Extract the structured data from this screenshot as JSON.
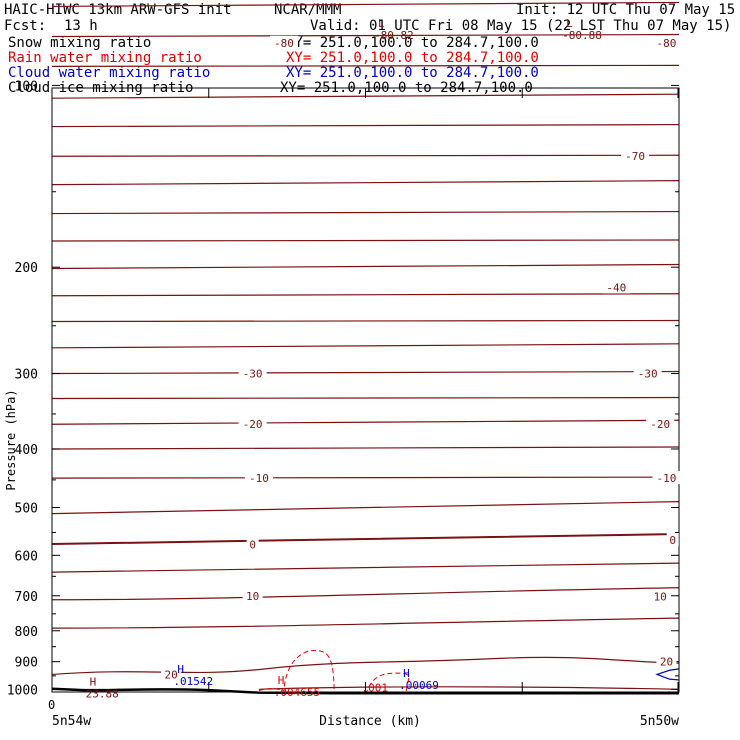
{
  "header": {
    "title_left": "HAIC-HIWC 13km ARW-GFS init",
    "org": "NCAR/MMM",
    "init": "Init: 12 UTC Thu 07 May 15",
    "fcst_label": "Fcst:",
    "fcst_value": "13 h",
    "valid": "Valid: 01 UTC Fri 08 May 15 (22 LST Thu 07 May 15)"
  },
  "fields": [
    {
      "name": "Snow mixing ratio",
      "xy": "XY= 251.0,100.0 to 284.7,100.0",
      "color": "#000000"
    },
    {
      "name": "Rain water mixing ratio",
      "xy": "XY= 251.0,100.0 to 284.7,100.0",
      "color": "#e00000"
    },
    {
      "name": "Cloud water mixing ratio",
      "xy": "XY= 251.0,100.0 to 284.7,100.0",
      "color": "#0000c8"
    },
    {
      "name": "Cloud ice mixing ratio",
      "xy": "XY= 251.0,100.0 to 284.7,100.0",
      "color": "#000000"
    }
  ],
  "colors": {
    "temperature": "#7a1212",
    "rain": "#e00000",
    "cloud_water": "#0000c8",
    "terrain": "#000000"
  },
  "chart_data": {
    "type": "line",
    "ylabel": "Pressure (hPa)",
    "xlabel": "Distance (km)",
    "x_start_label": "5n54w",
    "x_end_label": "5n50w",
    "x_zero_label": "0",
    "ylim": [
      1050,
      50
    ],
    "yticks": [
      100,
      200,
      300,
      400,
      500,
      600,
      700,
      800,
      900,
      1000
    ],
    "y_log": true,
    "temperature_contour_labels": [
      {
        "text": "-80",
        "x": 0.37,
        "p": 85
      },
      {
        "text": "-80",
        "x": 0.98,
        "p": 85
      },
      {
        "text": "-70",
        "x": 0.93,
        "p": 131
      },
      {
        "text": "-40",
        "x": 0.9,
        "p": 216
      },
      {
        "text": "-30",
        "x": 0.32,
        "p": 300
      },
      {
        "text": "-30",
        "x": 0.95,
        "p": 300
      },
      {
        "text": "-20",
        "x": 0.32,
        "p": 364
      },
      {
        "text": "-20",
        "x": 0.97,
        "p": 364
      },
      {
        "text": "-10",
        "x": 0.33,
        "p": 447
      },
      {
        "text": "-10",
        "x": 0.98,
        "p": 447
      },
      {
        "text": "0",
        "x": 0.32,
        "p": 576
      },
      {
        "text": "0",
        "x": 0.99,
        "p": 566
      },
      {
        "text": "10",
        "x": 0.32,
        "p": 700
      },
      {
        "text": "10",
        "x": 0.97,
        "p": 702
      },
      {
        "text": "20",
        "x": 0.19,
        "p": 945
      },
      {
        "text": "20",
        "x": 0.98,
        "p": 900
      }
    ],
    "extrema": [
      {
        "mark": "L",
        "value": "-80.82",
        "x": 0.52,
        "p": 80,
        "color": "#7a1212"
      },
      {
        "mark": "L",
        "value": "-80.88",
        "x": 0.82,
        "p": 80,
        "color": "#7a1212"
      },
      {
        "mark": "H",
        "value": "23.88",
        "x": 0.06,
        "p": 985,
        "color": "#7a1212"
      },
      {
        "mark": "H",
        "value": ".01542",
        "x": 0.2,
        "p": 940,
        "color": "#0000c8"
      },
      {
        "mark": "H",
        "value": ".004655",
        "x": 0.36,
        "p": 980,
        "color": "#e00000"
      },
      {
        "mark": "H",
        "value": ".00069",
        "x": 0.56,
        "p": 955,
        "color": "#0000c8"
      },
      {
        "mark": "",
        "value": ".001",
        "x": 0.5,
        "p": 1008,
        "color": "#e00000"
      }
    ]
  }
}
